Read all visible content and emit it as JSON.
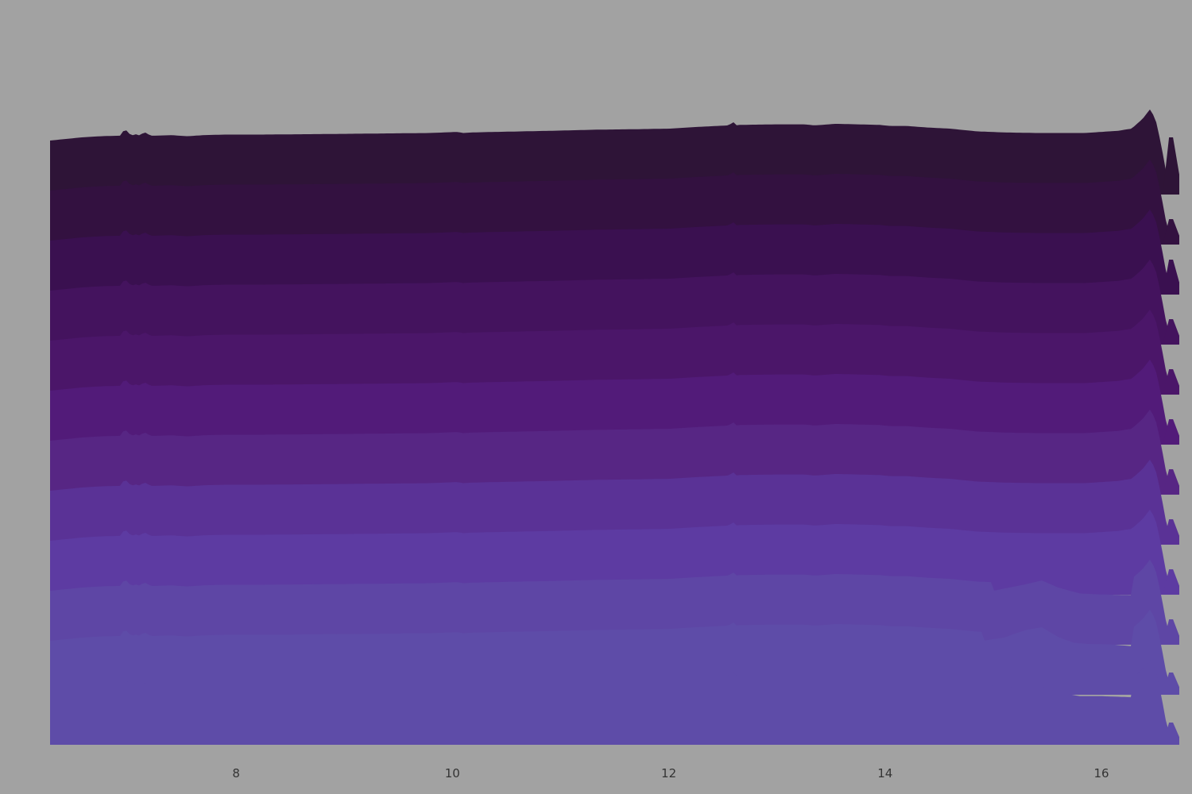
{
  "chart_data": {
    "type": "area",
    "subtype": "ridgeline",
    "title": "",
    "xlabel": "",
    "ylabel": "",
    "xlim": [
      6.28,
      16.72
    ],
    "x_ticks": [
      8,
      10,
      12,
      14,
      16
    ],
    "x_tick_labels": [
      "8",
      "10",
      "12",
      "14",
      "16"
    ],
    "grid": false,
    "legend": "none",
    "background": "#a2a2a2",
    "ridge_count": 12,
    "ridge_colors": [
      "#2e1437",
      "#331140",
      "#3a1050",
      "#44135e",
      "#4b1669",
      "#521b79",
      "#572684",
      "#5a3296",
      "#5d3ba2",
      "#5e46a5",
      "#5e4ca8",
      "#5e4ca8"
    ],
    "x": [
      6.28,
      6.58,
      6.75,
      6.93,
      6.97,
      7.03,
      7.08,
      7.11,
      7.15,
      7.21,
      7.26,
      7.4,
      7.55,
      7.7,
      7.9,
      8.2,
      8.8,
      9.3,
      9.8,
      10.05,
      10.1,
      10.18,
      10.4,
      10.9,
      11.3,
      11.7,
      12.0,
      12.25,
      12.55,
      12.6,
      12.62,
      12.65,
      13.0,
      13.25,
      13.35,
      13.55,
      13.75,
      13.95,
      14.05,
      14.2,
      14.4,
      14.6,
      14.85,
      15.1,
      15.4,
      15.6,
      15.85,
      16.0,
      16.15,
      16.28,
      16.38,
      16.45,
      16.5,
      16.55,
      16.6,
      16.66,
      16.72
    ],
    "top_profile": [
      1.0,
      1.06,
      1.08,
      1.09,
      1.22,
      1.09,
      1.12,
      1.09,
      1.16,
      1.09,
      1.09,
      1.1,
      1.08,
      1.1,
      1.11,
      1.11,
      1.12,
      1.13,
      1.14,
      1.16,
      1.14,
      1.15,
      1.16,
      1.18,
      1.2,
      1.21,
      1.22,
      1.25,
      1.28,
      1.34,
      1.28,
      1.29,
      1.3,
      1.3,
      1.28,
      1.31,
      1.3,
      1.29,
      1.27,
      1.27,
      1.24,
      1.22,
      1.17,
      1.15,
      1.14,
      1.14,
      1.14,
      1.16,
      1.18,
      1.22,
      1.4,
      1.58,
      1.4,
      0.95,
      0.4,
      0.0,
      0.0
    ],
    "right_bumps": [
      0.18,
      0.08,
      0.11,
      0.08,
      0.08,
      0.08,
      0.08,
      0.08,
      0.08,
      0.08,
      0.07,
      0.07
    ],
    "bottom_ridges": [
      {
        "index": 10,
        "override": [
          [
            14.9,
            1.0
          ],
          [
            15.1,
            1.06
          ],
          [
            15.3,
            1.2
          ],
          [
            15.45,
            1.25
          ],
          [
            15.6,
            1.07
          ],
          [
            15.75,
            0.96
          ],
          [
            15.9,
            0.94
          ],
          [
            16.1,
            0.93
          ],
          [
            16.28,
            0.9
          ]
        ]
      },
      {
        "index": 9,
        "override": [
          [
            15.0,
            1.0
          ],
          [
            15.3,
            1.12
          ],
          [
            15.45,
            1.19
          ],
          [
            15.6,
            1.06
          ],
          [
            15.8,
            0.95
          ],
          [
            16.0,
            0.93
          ],
          [
            16.28,
            0.92
          ]
        ]
      },
      {
        "index": 11,
        "override": [
          [
            15.0,
            1.0
          ],
          [
            15.15,
            1.06
          ],
          [
            15.3,
            1.12
          ],
          [
            15.45,
            1.08
          ],
          [
            15.6,
            0.97
          ],
          [
            15.8,
            0.9
          ],
          [
            16.0,
            0.9
          ],
          [
            16.28,
            0.88
          ]
        ]
      }
    ]
  }
}
